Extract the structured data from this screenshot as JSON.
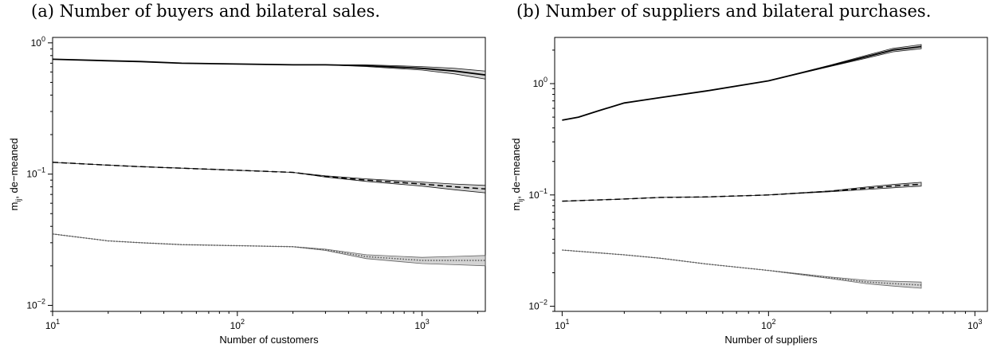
{
  "chart_data": [
    {
      "type": "line",
      "title": "(a) Number of buyers and bilateral sales.",
      "xlabel": "Number of customers",
      "ylabel_base": "m",
      "ylabel_sub": "ij",
      "ylabel_rest": ", de−meaned",
      "xscale": "log",
      "yscale": "log",
      "xlim": [
        10,
        2200
      ],
      "ylim": [
        0.009,
        1.1
      ],
      "grid": false,
      "xticks": [
        {
          "value": 10,
          "base": "10",
          "exp": "1"
        },
        {
          "value": 100,
          "base": "10",
          "exp": "2"
        },
        {
          "value": 1000,
          "base": "10",
          "exp": "3"
        }
      ],
      "yticks": [
        {
          "value": 0.01,
          "base": "10",
          "exp": "−2"
        },
        {
          "value": 0.1,
          "base": "10",
          "exp": "−1"
        },
        {
          "value": 1,
          "base": "10",
          "exp": "0"
        }
      ],
      "series": [
        {
          "style": "solid",
          "color": "#000000",
          "x": [
            10,
            20,
            30,
            50,
            100,
            200,
            300,
            500,
            1000,
            1500,
            2200
          ],
          "y": [
            0.75,
            0.73,
            0.72,
            0.7,
            0.69,
            0.68,
            0.68,
            0.67,
            0.64,
            0.61,
            0.57
          ],
          "band": [
            0.0,
            0.0,
            0.0,
            0.0,
            0.0,
            0.0,
            0.0,
            0.01,
            0.02,
            0.03,
            0.04
          ]
        },
        {
          "style": "dashed",
          "color": "#000000",
          "x": [
            10,
            20,
            30,
            50,
            100,
            200,
            300,
            500,
            1000,
            1500,
            2200
          ],
          "y": [
            0.123,
            0.117,
            0.114,
            0.111,
            0.107,
            0.103,
            0.096,
            0.09,
            0.084,
            0.08,
            0.077
          ],
          "band": [
            0.0,
            0.0,
            0.0,
            0.0,
            0.0,
            0.0,
            0.001,
            0.002,
            0.003,
            0.004,
            0.005
          ]
        },
        {
          "style": "dotted",
          "color": "#555555",
          "x": [
            10,
            20,
            30,
            50,
            100,
            200,
            300,
            500,
            1000,
            1500,
            2200
          ],
          "y": [
            0.035,
            0.031,
            0.03,
            0.029,
            0.0285,
            0.028,
            0.0265,
            0.0235,
            0.022,
            0.022,
            0.022
          ],
          "band": [
            0.0,
            0.0,
            0.0,
            0.0,
            0.0,
            0.0,
            0.0003,
            0.0008,
            0.0012,
            0.0016,
            0.002
          ]
        }
      ]
    },
    {
      "type": "line",
      "title": "(b) Number of suppliers and bilateral purchases.",
      "xlabel": "Number of suppliers",
      "ylabel_base": "m",
      "ylabel_sub": "ij",
      "ylabel_rest": ", de−meaned",
      "xscale": "log",
      "yscale": "log",
      "xlim": [
        9.2,
        1150
      ],
      "ylim": [
        0.009,
        2.6
      ],
      "grid": false,
      "xticks": [
        {
          "value": 10,
          "base": "10",
          "exp": "1"
        },
        {
          "value": 100,
          "base": "10",
          "exp": "2"
        },
        {
          "value": 1000,
          "base": "10",
          "exp": "3"
        }
      ],
      "yticks": [
        {
          "value": 0.01,
          "base": "10",
          "exp": "−2"
        },
        {
          "value": 0.1,
          "base": "10",
          "exp": "−1"
        },
        {
          "value": 1,
          "base": "10",
          "exp": "0"
        }
      ],
      "series": [
        {
          "style": "solid",
          "color": "#000000",
          "x": [
            10,
            12,
            15,
            20,
            30,
            50,
            100,
            200,
            300,
            400,
            550
          ],
          "y": [
            0.47,
            0.5,
            0.57,
            0.67,
            0.75,
            0.86,
            1.06,
            1.45,
            1.75,
            2.0,
            2.15
          ],
          "band": [
            0.0,
            0.0,
            0.0,
            0.0,
            0.0,
            0.0,
            0.0,
            0.02,
            0.05,
            0.07,
            0.09
          ]
        },
        {
          "style": "dashed",
          "color": "#000000",
          "x": [
            10,
            20,
            30,
            50,
            100,
            200,
            300,
            400,
            550
          ],
          "y": [
            0.088,
            0.092,
            0.095,
            0.096,
            0.1,
            0.108,
            0.115,
            0.12,
            0.125
          ],
          "band": [
            0.0,
            0.0,
            0.0,
            0.0,
            0.0,
            0.001,
            0.003,
            0.004,
            0.005
          ]
        },
        {
          "style": "dotted",
          "color": "#555555",
          "x": [
            10,
            20,
            30,
            50,
            100,
            200,
            300,
            400,
            550
          ],
          "y": [
            0.032,
            0.029,
            0.027,
            0.024,
            0.021,
            0.018,
            0.0165,
            0.016,
            0.0155
          ],
          "band": [
            0.0,
            0.0,
            0.0,
            0.0,
            0.0,
            0.0003,
            0.0006,
            0.0008,
            0.001
          ]
        }
      ]
    }
  ]
}
